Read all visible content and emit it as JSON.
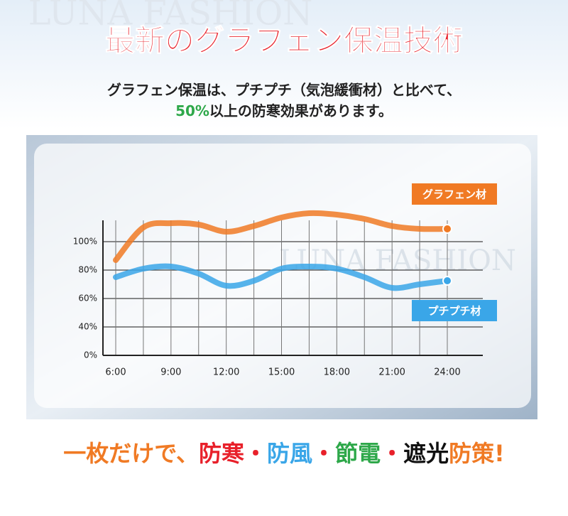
{
  "title": "最新のグラフェン保温技術",
  "subtitle_line1": "グラフェン保温は、プチプチ（気泡緩衝材）と比べて、",
  "subtitle_highlight": "50%",
  "subtitle_line2": "以上の防寒効果があります。",
  "watermark": "LUNA FASHION",
  "chart_data": {
    "type": "line",
    "categories": [
      "6:00",
      null,
      "9:00",
      null,
      "12:00",
      null,
      "15:00",
      null,
      "18:00",
      null,
      "21:00",
      null,
      "24:00"
    ],
    "series": [
      {
        "name": "グラフェン材",
        "color": "#f07a24",
        "values": [
          87,
          110,
          113,
          112,
          107,
          111,
          117,
          120,
          119,
          116,
          111,
          109,
          109
        ]
      },
      {
        "name": "プチプチ材",
        "color": "#3aa6e8",
        "values": [
          75,
          81,
          82.5,
          77.5,
          69,
          72.5,
          81,
          82.5,
          81,
          75,
          67.5,
          70,
          72.5
        ]
      }
    ],
    "ylim": [
      0,
      115
    ],
    "yticks": [
      {
        "value": 0,
        "label": "0%"
      },
      {
        "value": 40,
        "label": "40%"
      },
      {
        "value": 60,
        "label": "60%"
      },
      {
        "value": 80,
        "label": "80%"
      },
      {
        "value": 100,
        "label": "100%"
      }
    ],
    "grid": true
  },
  "tagline": [
    {
      "text": "一枚だけで、",
      "color": "#f07a24"
    },
    {
      "text": "防寒",
      "color": "#e8202a"
    },
    {
      "text": "・",
      "color": "#e8202a"
    },
    {
      "text": "防風",
      "color": "#3aa6e8"
    },
    {
      "text": "・",
      "color": "#e8202a"
    },
    {
      "text": "節電",
      "color": "#2ea84a"
    },
    {
      "text": "・",
      "color": "#e8202a"
    },
    {
      "text": "遮光",
      "color": "#111111"
    },
    {
      "text": "防策!",
      "color": "#f07a24"
    }
  ]
}
